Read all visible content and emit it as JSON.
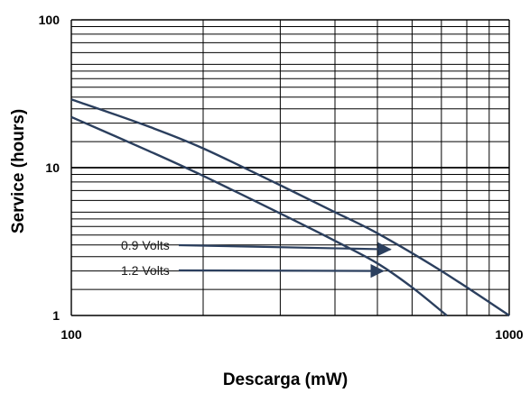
{
  "chart_data": {
    "type": "line",
    "xscale": "log",
    "yscale": "log",
    "xlim": [
      100,
      1000
    ],
    "ylim": [
      1,
      100
    ],
    "x_tick_labels": [
      "100",
      "1000"
    ],
    "y_tick_labels": [
      "100",
      "10",
      "1"
    ],
    "ylabel": "Service (hours)",
    "xlabel": "Descarga (mW)",
    "grid": true,
    "series": [
      {
        "label": "0.9 Volts",
        "x": [
          100,
          150,
          200,
          300,
          400,
          500,
          700,
          1000
        ],
        "y": [
          29,
          19,
          13.5,
          7.6,
          5.0,
          3.6,
          2.0,
          1.0
        ]
      },
      {
        "label": "1.2 Volts",
        "x": [
          100,
          150,
          200,
          300,
          400,
          500,
          600,
          720
        ],
        "y": [
          22,
          13,
          8.8,
          4.9,
          3.2,
          2.25,
          1.55,
          1.0
        ]
      }
    ],
    "annotations": [
      {
        "text": "0.9 Volts",
        "arrow_to": {
          "x": 535,
          "y": 2.8
        }
      },
      {
        "text": "1.2 Volts",
        "arrow_to": {
          "x": 515,
          "y": 2.0
        }
      }
    ],
    "colors": {
      "line": "#2b3f5e",
      "grid": "#000000"
    }
  }
}
